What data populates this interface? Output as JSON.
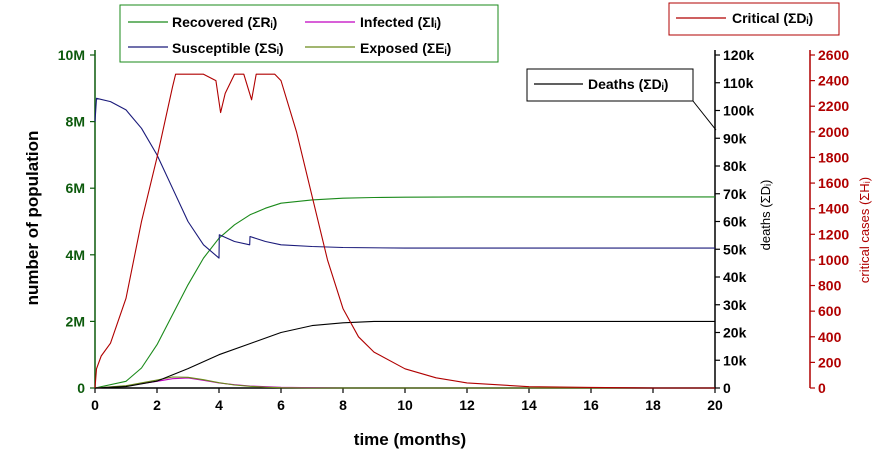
{
  "chart_data": {
    "type": "line",
    "xlabel": "time (months)",
    "xlim": [
      0,
      20
    ],
    "x_ticks": [
      "0",
      "2",
      "4",
      "6",
      "8",
      "10",
      "12",
      "14",
      "16",
      "18",
      "20"
    ],
    "axes": {
      "left": {
        "label": "number of population",
        "range": [
          0,
          10000000
        ],
        "ticks": [
          "0",
          "2M",
          "4M",
          "6M",
          "8M",
          "10M"
        ],
        "color": "#0c5a0c"
      },
      "right1": {
        "label": "deaths (ΣDᵢ)",
        "range": [
          0,
          120000
        ],
        "ticks": [
          "0",
          "10k",
          "20k",
          "30k",
          "40k",
          "50k",
          "60k",
          "70k",
          "80k",
          "90k",
          "100k",
          "110k",
          "120k"
        ],
        "color": "#000000"
      },
      "right2": {
        "label": "critical cases (ΣHᵢ)",
        "range": [
          0,
          2600
        ],
        "ticks": [
          "0",
          "200",
          "400",
          "600",
          "800",
          "1000",
          "1200",
          "1400",
          "1600",
          "1800",
          "2000",
          "2200",
          "2400",
          "2600"
        ],
        "color": "#8b0000"
      }
    },
    "series": [
      {
        "name": "Recovered (ΣRᵢ)",
        "axis": "left",
        "color": "#1a8a1a",
        "x": [
          0,
          1,
          1.5,
          2,
          2.5,
          3,
          3.5,
          4,
          4.5,
          5,
          5.5,
          6,
          7,
          8,
          9,
          10,
          12,
          14,
          16,
          18,
          20
        ],
        "values": [
          0,
          200000,
          600000,
          1300000,
          2200000,
          3100000,
          3900000,
          4500000,
          4900000,
          5200000,
          5400000,
          5550000,
          5650000,
          5700000,
          5720000,
          5730000,
          5740000,
          5740000,
          5740000,
          5740000,
          5740000
        ]
      },
      {
        "name": "Infected (ΣIᵢ)",
        "axis": "left",
        "color": "#c000c0",
        "x": [
          0,
          1,
          2,
          2.5,
          3,
          3.5,
          4,
          4.5,
          5,
          5.5,
          6,
          7,
          8,
          20
        ],
        "values": [
          0,
          60000,
          200000,
          280000,
          300000,
          230000,
          150000,
          100000,
          60000,
          40000,
          20000,
          10000,
          0,
          0
        ]
      },
      {
        "name": "Susceptible (ΣSᵢ)",
        "axis": "left",
        "color": "#1a1a7a",
        "x": [
          0,
          0.05,
          0.5,
          1,
          1.5,
          2,
          2.5,
          3,
          3.5,
          4,
          4.01,
          4.5,
          4.99,
          5.0,
          5.5,
          6,
          7,
          8,
          10,
          12,
          14,
          16,
          18,
          20
        ],
        "values": [
          8000000,
          8700000,
          8600000,
          8350000,
          7800000,
          7000000,
          6000000,
          5000000,
          4300000,
          3900000,
          4600000,
          4400000,
          4300000,
          4550000,
          4400000,
          4300000,
          4250000,
          4220000,
          4200000,
          4200000,
          4200000,
          4200000,
          4200000,
          4200000
        ]
      },
      {
        "name": "Exposed (ΣEᵢ)",
        "axis": "left",
        "color": "#6a8a1a",
        "x": [
          0,
          1,
          2,
          2.5,
          3,
          3.5,
          4,
          4.5,
          5,
          5.5,
          6,
          7,
          20
        ],
        "values": [
          0,
          70000,
          240000,
          330000,
          320000,
          250000,
          160000,
          90000,
          50000,
          25000,
          10000,
          0,
          0
        ]
      },
      {
        "name": "Deaths (ΣDᵢ)",
        "axis": "right1",
        "color": "#000000",
        "x": [
          0,
          1,
          2,
          3,
          4,
          5,
          6,
          7,
          8,
          9,
          10,
          12,
          14,
          16,
          18,
          20
        ],
        "values": [
          0,
          500,
          2500,
          7000,
          12000,
          16000,
          20000,
          22500,
          23500,
          24000,
          24000,
          24000,
          24000,
          24000,
          24000,
          24000
        ]
      },
      {
        "name": "Critical (ΣDᵢ)",
        "axis": "right2",
        "color": "#b00000",
        "x": [
          0,
          0.05,
          0.2,
          0.5,
          1,
          1.5,
          2,
          2.5,
          2.6,
          3.5,
          3.9,
          4.05,
          4.2,
          4.5,
          4.8,
          5.05,
          5.2,
          5.8,
          6,
          6.5,
          7,
          7.5,
          8,
          8.5,
          9,
          10,
          11,
          12,
          14,
          16,
          18,
          20
        ],
        "values": [
          0,
          150,
          250,
          350,
          700,
          1300,
          1800,
          2350,
          2450,
          2450,
          2400,
          2150,
          2300,
          2450,
          2450,
          2250,
          2450,
          2450,
          2400,
          2000,
          1500,
          1000,
          620,
          400,
          280,
          150,
          80,
          40,
          10,
          5,
          0,
          0
        ]
      }
    ],
    "legends": [
      {
        "entries": [
          "Recovered (ΣRᵢ)",
          "Infected (ΣIᵢ)",
          "Susceptible (ΣSᵢ)",
          "Exposed (ΣEᵢ)"
        ]
      },
      {
        "entries": [
          "Deaths (ΣDᵢ)"
        ]
      },
      {
        "entries": [
          "Critical (ΣDᵢ)"
        ]
      }
    ]
  }
}
